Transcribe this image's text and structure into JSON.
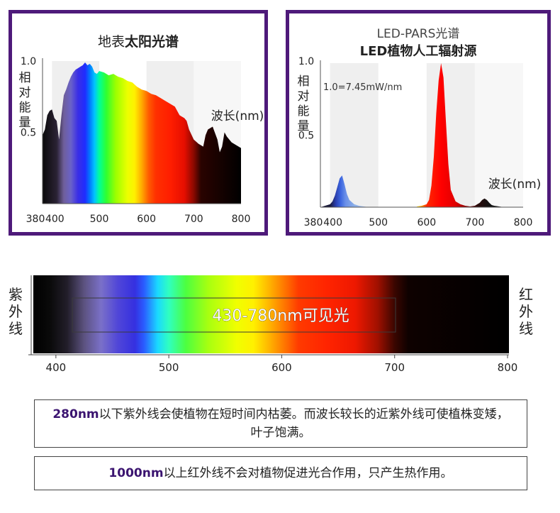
{
  "solar_panel": {
    "title_normal": "地表",
    "title_bold": "太阳光谱",
    "ylabel_chars": [
      "相",
      "对",
      "能",
      "量"
    ],
    "y_ticks": [
      "1.0",
      "0.5"
    ],
    "x_ticks": [
      "380",
      "400",
      "500",
      "600",
      "700",
      "800"
    ],
    "xlabel": "波长(nm)"
  },
  "led_panel": {
    "title_line1": "LED-PARS光谱",
    "title_line2": "LED植物人工辐射源",
    "ylabel_chars": [
      "相",
      "对",
      "能",
      "量"
    ],
    "y_ticks": [
      "1.0",
      "0.5"
    ],
    "x_ticks": [
      "380",
      "400",
      "500",
      "600",
      "700",
      "800"
    ],
    "xlabel": "波长(nm)",
    "scale_note": "1.0=7.45mW/nm"
  },
  "spectrum_bar": {
    "left_label_chars": [
      "紫",
      "外",
      "线"
    ],
    "right_label_chars": [
      "红",
      "外",
      "线"
    ],
    "visible_label": "430-780nm可见光",
    "x_ticks": [
      "400",
      "500",
      "600",
      "700",
      "800"
    ]
  },
  "notes": {
    "uv_highlight": "280nm",
    "uv_text": "以下紫外线会使植物在短时间内枯萎。而波长较长的近紫外线可使植株变矮，叶子饱满。",
    "ir_highlight": "1000nm",
    "ir_text": "以上红外线不会对植物促进光合作用，只产生热作用。"
  },
  "chart_data": [
    {
      "type": "area",
      "title": "地表太阳光谱",
      "xlabel": "波长(nm)",
      "ylabel": "相对能量",
      "xlim": [
        380,
        800
      ],
      "ylim": [
        0,
        1.0
      ],
      "x": [
        380,
        385,
        390,
        395,
        400,
        405,
        410,
        415,
        420,
        425,
        430,
        435,
        440,
        445,
        450,
        455,
        460,
        465,
        470,
        475,
        480,
        485,
        490,
        495,
        500,
        510,
        520,
        530,
        540,
        550,
        560,
        570,
        580,
        590,
        600,
        610,
        620,
        630,
        640,
        650,
        660,
        670,
        680,
        685,
        690,
        700,
        710,
        720,
        725,
        730,
        740,
        750,
        755,
        760,
        765,
        770,
        780,
        790,
        800
      ],
      "y": [
        0.48,
        0.52,
        0.62,
        0.65,
        0.66,
        0.6,
        0.58,
        0.45,
        0.62,
        0.76,
        0.8,
        0.85,
        0.89,
        0.92,
        0.94,
        0.95,
        0.96,
        0.97,
        0.99,
        0.97,
        0.98,
        0.96,
        0.92,
        0.91,
        0.93,
        0.92,
        0.9,
        0.91,
        0.89,
        0.88,
        0.86,
        0.85,
        0.82,
        0.8,
        0.79,
        0.77,
        0.76,
        0.74,
        0.72,
        0.7,
        0.68,
        0.62,
        0.6,
        0.58,
        0.52,
        0.45,
        0.42,
        0.4,
        0.48,
        0.52,
        0.54,
        0.45,
        0.36,
        0.4,
        0.5,
        0.47,
        0.43,
        0.41,
        0.39
      ]
    },
    {
      "type": "area",
      "title": "LED植物人工辐射源",
      "xlabel": "波长(nm)",
      "ylabel": "相对能量",
      "xlim": [
        380,
        800
      ],
      "ylim": [
        0,
        1.0
      ],
      "x": [
        380,
        400,
        405,
        410,
        415,
        420,
        425,
        430,
        435,
        440,
        450,
        460,
        470,
        480,
        500,
        550,
        580,
        590,
        600,
        605,
        610,
        615,
        620,
        625,
        630,
        635,
        640,
        645,
        650,
        660,
        670,
        680,
        690,
        700,
        705,
        710,
        715,
        720,
        725,
        730,
        735,
        740,
        750,
        760,
        800
      ],
      "y": [
        0,
        0.02,
        0.04,
        0.08,
        0.14,
        0.2,
        0.22,
        0.16,
        0.09,
        0.05,
        0.02,
        0.01,
        0.005,
        0,
        0,
        0,
        0.005,
        0.01,
        0.02,
        0.05,
        0.15,
        0.35,
        0.65,
        0.88,
        1.0,
        0.9,
        0.6,
        0.3,
        0.12,
        0.04,
        0.02,
        0.01,
        0.005,
        0.01,
        0.02,
        0.03,
        0.05,
        0.06,
        0.05,
        0.03,
        0.015,
        0.01,
        0.005,
        0,
        0
      ]
    }
  ]
}
